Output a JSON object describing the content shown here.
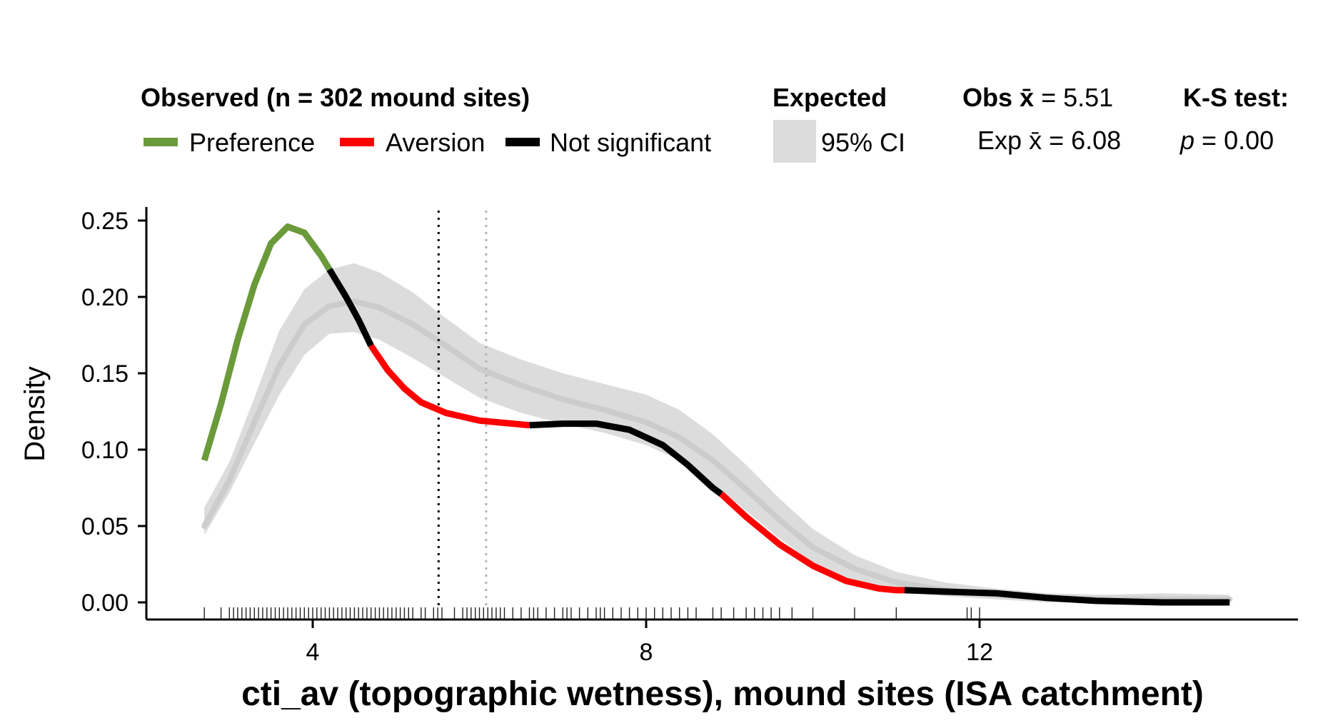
{
  "chart_data": {
    "type": "line",
    "title": "",
    "xlabel": "cti_av (topographic wetness), mound sites (ISA catchment)",
    "ylabel": "Density",
    "xlim": [
      2.0,
      16.0
    ],
    "ylim": [
      -0.01,
      0.26
    ],
    "x_ticks": [
      4,
      8,
      12
    ],
    "y_ticks": [
      0.0,
      0.05,
      0.1,
      0.15,
      0.2,
      0.25
    ],
    "y_tick_labels": [
      "0.00",
      "0.05",
      "0.10",
      "0.15",
      "0.20",
      "0.25"
    ],
    "grid": false,
    "legend": {
      "observed_title": "Observed (n = 302 mound sites)",
      "preference": "Preference",
      "aversion": "Aversion",
      "not_significant": "Not significant",
      "expected_title": "Expected",
      "ci_label": "95% CI",
      "obs_mean_prefix": "Obs",
      "obs_mean_symbol": "x̄",
      "obs_mean_value": "= 5.51",
      "exp_mean_prefix": "Exp",
      "exp_mean_symbol": "x̄",
      "exp_mean_value": "= 6.08",
      "ks_title": "K-S test:",
      "ks_p_symbol": "p",
      "ks_p_value": "= 0.00"
    },
    "obs_mean": 5.51,
    "exp_mean": 6.08,
    "colors": {
      "preference": "#6a9a3a",
      "aversion": "#ff0000",
      "not_significant": "#000000",
      "expected_line": "#cccccc",
      "ci_band": "#dcdcdc",
      "obs_mean_line": "#000000",
      "exp_mean_line": "#b3b3b3"
    },
    "observed": [
      {
        "x": 2.7,
        "y": 0.093,
        "sig": "pref"
      },
      {
        "x": 2.9,
        "y": 0.13,
        "sig": "pref"
      },
      {
        "x": 3.1,
        "y": 0.172,
        "sig": "pref"
      },
      {
        "x": 3.3,
        "y": 0.208,
        "sig": "pref"
      },
      {
        "x": 3.5,
        "y": 0.235,
        "sig": "pref"
      },
      {
        "x": 3.7,
        "y": 0.246,
        "sig": "pref"
      },
      {
        "x": 3.9,
        "y": 0.242,
        "sig": "pref"
      },
      {
        "x": 4.1,
        "y": 0.227,
        "sig": "pref"
      },
      {
        "x": 4.2,
        "y": 0.218,
        "sig": "ns"
      },
      {
        "x": 4.4,
        "y": 0.2,
        "sig": "ns"
      },
      {
        "x": 4.55,
        "y": 0.185,
        "sig": "ns"
      },
      {
        "x": 4.7,
        "y": 0.168,
        "sig": "aver"
      },
      {
        "x": 4.9,
        "y": 0.152,
        "sig": "aver"
      },
      {
        "x": 5.1,
        "y": 0.14,
        "sig": "aver"
      },
      {
        "x": 5.3,
        "y": 0.131,
        "sig": "aver"
      },
      {
        "x": 5.6,
        "y": 0.124,
        "sig": "aver"
      },
      {
        "x": 6.0,
        "y": 0.119,
        "sig": "aver"
      },
      {
        "x": 6.4,
        "y": 0.117,
        "sig": "aver"
      },
      {
        "x": 6.6,
        "y": 0.116,
        "sig": "ns"
      },
      {
        "x": 7.0,
        "y": 0.117,
        "sig": "ns"
      },
      {
        "x": 7.4,
        "y": 0.117,
        "sig": "ns"
      },
      {
        "x": 7.8,
        "y": 0.113,
        "sig": "ns"
      },
      {
        "x": 8.2,
        "y": 0.103,
        "sig": "ns"
      },
      {
        "x": 8.5,
        "y": 0.09,
        "sig": "ns"
      },
      {
        "x": 8.8,
        "y": 0.075,
        "sig": "ns"
      },
      {
        "x": 8.9,
        "y": 0.071,
        "sig": "aver"
      },
      {
        "x": 9.2,
        "y": 0.056,
        "sig": "aver"
      },
      {
        "x": 9.6,
        "y": 0.038,
        "sig": "aver"
      },
      {
        "x": 10.0,
        "y": 0.024,
        "sig": "aver"
      },
      {
        "x": 10.4,
        "y": 0.014,
        "sig": "aver"
      },
      {
        "x": 10.8,
        "y": 0.009,
        "sig": "aver"
      },
      {
        "x": 11.0,
        "y": 0.008,
        "sig": "aver"
      },
      {
        "x": 11.1,
        "y": 0.008,
        "sig": "ns"
      },
      {
        "x": 11.6,
        "y": 0.007,
        "sig": "ns"
      },
      {
        "x": 12.2,
        "y": 0.006,
        "sig": "ns"
      },
      {
        "x": 12.8,
        "y": 0.003,
        "sig": "ns"
      },
      {
        "x": 13.4,
        "y": 0.001,
        "sig": "ns"
      },
      {
        "x": 14.2,
        "y": 0.0,
        "sig": "ns"
      },
      {
        "x": 15.0,
        "y": 0.0,
        "sig": "ns"
      }
    ],
    "expected": [
      {
        "x": 2.7,
        "y": 0.05,
        "lo": 0.044,
        "hi": 0.062
      },
      {
        "x": 3.0,
        "y": 0.08,
        "lo": 0.072,
        "hi": 0.092
      },
      {
        "x": 3.3,
        "y": 0.118,
        "lo": 0.104,
        "hi": 0.134
      },
      {
        "x": 3.6,
        "y": 0.155,
        "lo": 0.136,
        "hi": 0.178
      },
      {
        "x": 3.9,
        "y": 0.182,
        "lo": 0.162,
        "hi": 0.205
      },
      {
        "x": 4.2,
        "y": 0.194,
        "lo": 0.176,
        "hi": 0.218
      },
      {
        "x": 4.5,
        "y": 0.197,
        "lo": 0.177,
        "hi": 0.222
      },
      {
        "x": 4.8,
        "y": 0.193,
        "lo": 0.172,
        "hi": 0.216
      },
      {
        "x": 5.2,
        "y": 0.182,
        "lo": 0.16,
        "hi": 0.203
      },
      {
        "x": 5.6,
        "y": 0.168,
        "lo": 0.147,
        "hi": 0.186
      },
      {
        "x": 6.0,
        "y": 0.153,
        "lo": 0.134,
        "hi": 0.17
      },
      {
        "x": 6.5,
        "y": 0.142,
        "lo": 0.124,
        "hi": 0.159
      },
      {
        "x": 7.0,
        "y": 0.133,
        "lo": 0.117,
        "hi": 0.15
      },
      {
        "x": 7.5,
        "y": 0.126,
        "lo": 0.111,
        "hi": 0.143
      },
      {
        "x": 8.0,
        "y": 0.118,
        "lo": 0.103,
        "hi": 0.136
      },
      {
        "x": 8.4,
        "y": 0.108,
        "lo": 0.093,
        "hi": 0.126
      },
      {
        "x": 8.8,
        "y": 0.093,
        "lo": 0.078,
        "hi": 0.11
      },
      {
        "x": 9.2,
        "y": 0.074,
        "lo": 0.06,
        "hi": 0.09
      },
      {
        "x": 9.6,
        "y": 0.054,
        "lo": 0.042,
        "hi": 0.068
      },
      {
        "x": 10.0,
        "y": 0.036,
        "lo": 0.026,
        "hi": 0.048
      },
      {
        "x": 10.5,
        "y": 0.022,
        "lo": 0.014,
        "hi": 0.031
      },
      {
        "x": 11.0,
        "y": 0.013,
        "lo": 0.007,
        "hi": 0.02
      },
      {
        "x": 11.6,
        "y": 0.008,
        "lo": 0.004,
        "hi": 0.013
      },
      {
        "x": 12.2,
        "y": 0.005,
        "lo": 0.002,
        "hi": 0.009
      },
      {
        "x": 12.8,
        "y": 0.003,
        "lo": 0.0,
        "hi": 0.006
      },
      {
        "x": 13.5,
        "y": 0.002,
        "lo": 0.0,
        "hi": 0.005
      },
      {
        "x": 14.2,
        "y": 0.002,
        "lo": 0.0,
        "hi": 0.006
      },
      {
        "x": 15.0,
        "y": 0.002,
        "lo": 0.0,
        "hi": 0.005
      }
    ],
    "rug": [
      2.7,
      2.9,
      3.0,
      3.05,
      3.1,
      3.15,
      3.2,
      3.25,
      3.3,
      3.35,
      3.4,
      3.45,
      3.5,
      3.55,
      3.6,
      3.65,
      3.7,
      3.75,
      3.8,
      3.85,
      3.9,
      3.95,
      4.0,
      4.05,
      4.1,
      4.15,
      4.2,
      4.25,
      4.3,
      4.35,
      4.4,
      4.45,
      4.5,
      4.55,
      4.6,
      4.65,
      4.7,
      4.75,
      4.8,
      4.85,
      4.9,
      4.95,
      5.0,
      5.05,
      5.1,
      5.15,
      5.2,
      5.3,
      5.35,
      5.45,
      5.5,
      5.55,
      5.7,
      5.8,
      5.85,
      5.9,
      5.95,
      6.0,
      6.05,
      6.1,
      6.15,
      6.2,
      6.25,
      6.3,
      6.4,
      6.5,
      6.6,
      6.65,
      6.7,
      6.8,
      6.9,
      7.0,
      7.05,
      7.1,
      7.2,
      7.3,
      7.4,
      7.45,
      7.5,
      7.6,
      7.7,
      7.8,
      7.9,
      8.0,
      8.1,
      8.2,
      8.3,
      8.4,
      8.5,
      8.6,
      8.8,
      8.9,
      9.05,
      9.2,
      9.3,
      9.4,
      9.5,
      9.6,
      9.75,
      10.0,
      10.5,
      11.0,
      11.85,
      11.9,
      12.0
    ]
  }
}
